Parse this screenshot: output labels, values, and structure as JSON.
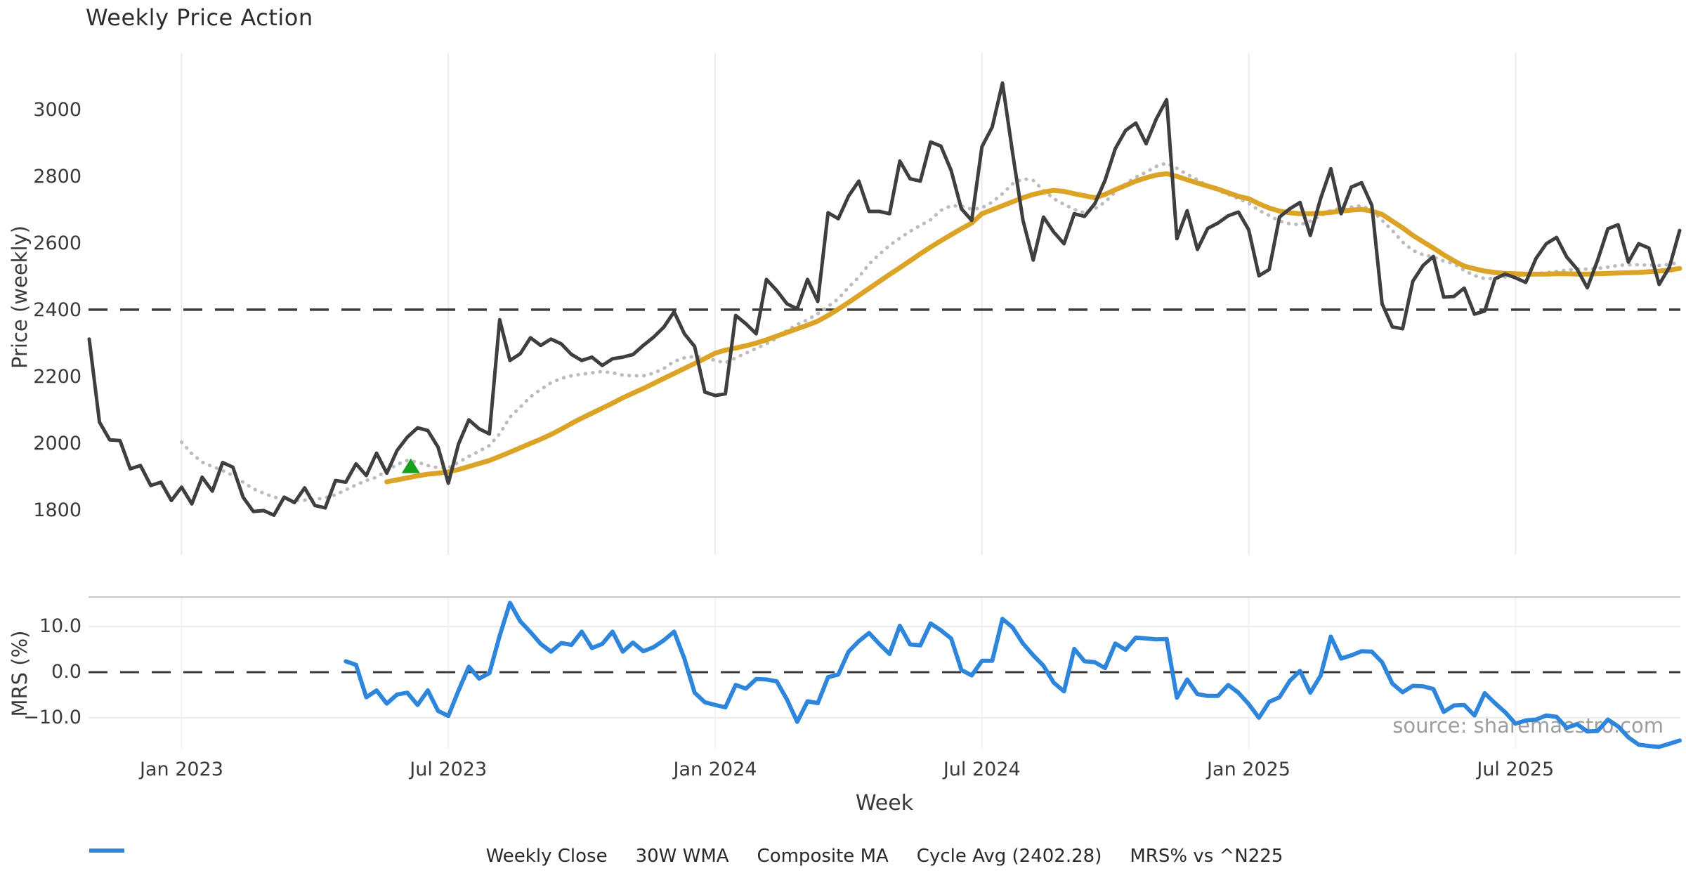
{
  "title": "Weekly Price Action",
  "source_note": "source: sharemaestro.com",
  "background_color": "#ffffff",
  "grid_color": "#ececec",
  "spine_color": "#c9c9c9",
  "legend": [
    {
      "label": "Weekly Close",
      "color": "#3f3f3f",
      "style": "solid"
    },
    {
      "label": "30W WMA",
      "color": "#dba427",
      "style": "solid"
    },
    {
      "label": "Composite MA",
      "color": "#bcbcbc",
      "style": "dotted"
    },
    {
      "label": "Cycle Avg (2402.28)",
      "color": "#3f3f3f",
      "style": "dashed"
    },
    {
      "label": "MRS% vs ^N225",
      "color": "#2d86dc",
      "style": "solid"
    }
  ],
  "chart_data": [
    {
      "type": "line",
      "panel": "price",
      "title": "Weekly Price Action",
      "xlabel": "Week",
      "ylabel": "Price (weekly)",
      "ylim": [
        1667,
        3173
      ],
      "yticks": [
        {
          "v": 1800,
          "label": "1800"
        },
        {
          "v": 2000,
          "label": "2000"
        },
        {
          "v": 2200,
          "label": "2200"
        },
        {
          "v": 2400,
          "label": "2400"
        },
        {
          "v": 2600,
          "label": "2600"
        },
        {
          "v": 2800,
          "label": "2800"
        },
        {
          "v": 3000,
          "label": "3000"
        }
      ],
      "n_points": 156,
      "x_ticks": [
        {
          "index": 9,
          "label": "Jan 2023"
        },
        {
          "index": 35,
          "label": "Jul 2023"
        },
        {
          "index": 61,
          "label": "Jan 2024"
        },
        {
          "index": 87,
          "label": "Jul 2024"
        },
        {
          "index": 113,
          "label": "Jan 2025"
        },
        {
          "index": 139,
          "label": "Jul 2025"
        }
      ],
      "grid": "vertical-only",
      "cycle_avg": {
        "value": 2402.28,
        "color": "#3a3a3a",
        "style": "dashed"
      },
      "marker": {
        "name": "buy-signal-triangle",
        "shape": "triangle-up",
        "color": "#17a01e",
        "week_index": 31,
        "value": 1931
      },
      "series": [
        {
          "name": "Weekly Close",
          "color": "#3f3f3f",
          "style": "solid",
          "width": 5,
          "values": [
            2314,
            2065,
            2012,
            2010,
            1925,
            1935,
            1875,
            1885,
            1830,
            1870,
            1820,
            1900,
            1858,
            1944,
            1930,
            1840,
            1797,
            1800,
            1786,
            1840,
            1824,
            1868,
            1815,
            1808,
            1890,
            1885,
            1940,
            1905,
            1972,
            1912,
            1980,
            2020,
            2048,
            2040,
            1990,
            1882,
            2000,
            2072,
            2045,
            2030,
            2372,
            2250,
            2270,
            2318,
            2295,
            2314,
            2300,
            2268,
            2250,
            2260,
            2235,
            2255,
            2260,
            2268,
            2295,
            2320,
            2350,
            2396,
            2330,
            2292,
            2155,
            2145,
            2150,
            2385,
            2360,
            2330,
            2493,
            2460,
            2420,
            2405,
            2493,
            2427,
            2693,
            2675,
            2743,
            2788,
            2697,
            2697,
            2690,
            2848,
            2795,
            2788,
            2905,
            2893,
            2820,
            2705,
            2670,
            2891,
            2950,
            3082,
            2870,
            2670,
            2551,
            2680,
            2635,
            2600,
            2690,
            2682,
            2720,
            2790,
            2885,
            2940,
            2962,
            2900,
            2975,
            3032,
            2615,
            2699,
            2583,
            2646,
            2662,
            2684,
            2695,
            2642,
            2504,
            2523,
            2680,
            2705,
            2724,
            2625,
            2735,
            2825,
            2690,
            2770,
            2783,
            2715,
            2420,
            2351,
            2345,
            2488,
            2535,
            2562,
            2440,
            2442,
            2467,
            2389,
            2398,
            2495,
            2509,
            2498,
            2484,
            2556,
            2600,
            2619,
            2560,
            2524,
            2468,
            2550,
            2645,
            2657,
            2545,
            2600,
            2587,
            2478,
            2530,
            2640
          ]
        },
        {
          "name": "30W WMA",
          "color": "#dba427",
          "style": "solid",
          "width": 7,
          "values": [
            null,
            null,
            null,
            null,
            null,
            null,
            null,
            null,
            null,
            null,
            null,
            null,
            null,
            null,
            null,
            null,
            null,
            null,
            null,
            null,
            null,
            null,
            null,
            null,
            null,
            null,
            null,
            null,
            null,
            1886,
            1892,
            1898,
            1904,
            1909,
            1912,
            1916,
            1923,
            1932,
            1941,
            1950,
            1962,
            1975,
            1988,
            2001,
            2014,
            2028,
            2044,
            2061,
            2077,
            2092,
            2107,
            2122,
            2138,
            2152,
            2166,
            2181,
            2196,
            2211,
            2226,
            2241,
            2256,
            2272,
            2281,
            2287,
            2294,
            2302,
            2312,
            2323,
            2334,
            2345,
            2356,
            2368,
            2385,
            2404,
            2424,
            2445,
            2466,
            2487,
            2508,
            2528,
            2549,
            2570,
            2590,
            2609,
            2627,
            2645,
            2662,
            2690,
            2702,
            2714,
            2726,
            2738,
            2748,
            2755,
            2760,
            2757,
            2750,
            2744,
            2738,
            2748,
            2762,
            2775,
            2788,
            2798,
            2806,
            2810,
            2802,
            2792,
            2782,
            2773,
            2764,
            2753,
            2742,
            2735,
            2720,
            2707,
            2698,
            2693,
            2690,
            2690,
            2691,
            2694,
            2698,
            2701,
            2703,
            2698,
            2688,
            2668,
            2648,
            2625,
            2606,
            2587,
            2567,
            2549,
            2533,
            2525,
            2518,
            2514,
            2511,
            2510,
            2509,
            2509,
            2509,
            2510,
            2510,
            2509,
            2509,
            2510,
            2511,
            2512,
            2513,
            2514,
            2516,
            2518,
            2521,
            2526
          ]
        },
        {
          "name": "Composite MA",
          "color": "#bcbcbc",
          "style": "dotted",
          "width": 5,
          "values": [
            null,
            null,
            null,
            null,
            null,
            null,
            null,
            null,
            null,
            2005,
            1970,
            1945,
            1932,
            1920,
            1905,
            1885,
            1865,
            1852,
            1840,
            1835,
            1829,
            1831,
            1833,
            1838,
            1847,
            1862,
            1877,
            1890,
            1900,
            1920,
            1938,
            1950,
            1945,
            1935,
            1928,
            1928,
            1945,
            1962,
            1978,
            1995,
            2030,
            2080,
            2110,
            2141,
            2163,
            2183,
            2196,
            2204,
            2209,
            2213,
            2217,
            2213,
            2206,
            2204,
            2204,
            2212,
            2226,
            2247,
            2258,
            2262,
            2260,
            2250,
            2243,
            2258,
            2272,
            2286,
            2300,
            2317,
            2340,
            2358,
            2372,
            2390,
            2412,
            2435,
            2469,
            2500,
            2539,
            2568,
            2595,
            2617,
            2637,
            2655,
            2672,
            2700,
            2714,
            2713,
            2703,
            2708,
            2725,
            2750,
            2780,
            2795,
            2790,
            2760,
            2735,
            2718,
            2703,
            2693,
            2705,
            2725,
            2755,
            2780,
            2800,
            2815,
            2832,
            2842,
            2826,
            2808,
            2792,
            2772,
            2760,
            2748,
            2735,
            2722,
            2700,
            2685,
            2668,
            2660,
            2657,
            2668,
            2684,
            2700,
            2706,
            2710,
            2714,
            2700,
            2670,
            2640,
            2605,
            2580,
            2567,
            2560,
            2548,
            2540,
            2520,
            2505,
            2495,
            2496,
            2500,
            2504,
            2508,
            2511,
            2513,
            2517,
            2521,
            2524,
            2524,
            2526,
            2530,
            2535,
            2537,
            2537,
            2536,
            2535,
            2538,
            2545
          ]
        }
      ]
    },
    {
      "type": "line",
      "panel": "mrs",
      "ylabel": "MRS (%)",
      "ylim": [
        -16.8,
        16.5
      ],
      "yticks": [
        {
          "v": 10,
          "label": "10.0"
        },
        {
          "v": 0,
          "label": "0.0"
        },
        {
          "v": -10,
          "label": "−10.0"
        }
      ],
      "hgrid_values": [
        10,
        -10
      ],
      "zero_line": {
        "value": 0.0,
        "color": "#3a3a3a",
        "style": "dashed"
      },
      "series": [
        {
          "name": "MRS% vs ^N225",
          "color": "#2d86dc",
          "style": "solid",
          "width": 6,
          "values": [
            null,
            null,
            null,
            null,
            null,
            null,
            null,
            null,
            null,
            null,
            null,
            null,
            null,
            null,
            null,
            null,
            null,
            null,
            null,
            null,
            null,
            null,
            null,
            null,
            null,
            2.4,
            1.6,
            -5.5,
            -4.0,
            -6.9,
            -4.9,
            -4.5,
            -7.2,
            -4.0,
            -8.5,
            -9.6,
            -4.0,
            1.2,
            -1.4,
            -0.2,
            8.0,
            15.2,
            11.2,
            8.8,
            6.2,
            4.5,
            6.4,
            6.0,
            8.9,
            5.3,
            6.2,
            8.9,
            4.5,
            6.5,
            4.6,
            5.5,
            7.0,
            8.9,
            3.0,
            -4.5,
            -6.6,
            -7.2,
            -7.7,
            -2.8,
            -3.6,
            -1.5,
            -1.6,
            -2.0,
            -6.0,
            -10.9,
            -6.4,
            -6.8,
            -1.1,
            -0.5,
            4.5,
            6.8,
            8.6,
            6.2,
            4.0,
            10.2,
            6.1,
            5.9,
            10.7,
            9.2,
            7.4,
            0.5,
            -0.7,
            2.5,
            2.5,
            11.7,
            9.8,
            6.3,
            3.7,
            1.4,
            -2.3,
            -4.2,
            5.1,
            2.4,
            2.2,
            0.9,
            6.3,
            4.9,
            7.6,
            7.4,
            7.2,
            7.3,
            -5.6,
            -1.6,
            -4.8,
            -5.2,
            -5.2,
            -2.8,
            -4.5,
            -7.0,
            -10.0,
            -6.5,
            -5.5,
            -1.9,
            0.3,
            -4.5,
            -0.8,
            7.8,
            3.0,
            3.7,
            4.6,
            4.5,
            2.2,
            -2.5,
            -4.4,
            -3.0,
            -3.1,
            -3.7,
            -8.7,
            -7.3,
            -7.2,
            -9.5,
            -4.6,
            -6.8,
            -8.8,
            -11.3,
            -10.6,
            -10.4,
            -9.5,
            -9.8,
            -12.2,
            -11.4,
            -13.0,
            -12.9,
            -10.4,
            -11.9,
            -14.3,
            -15.9,
            -16.2,
            -16.4,
            -15.7,
            -15.0
          ]
        }
      ]
    }
  ]
}
